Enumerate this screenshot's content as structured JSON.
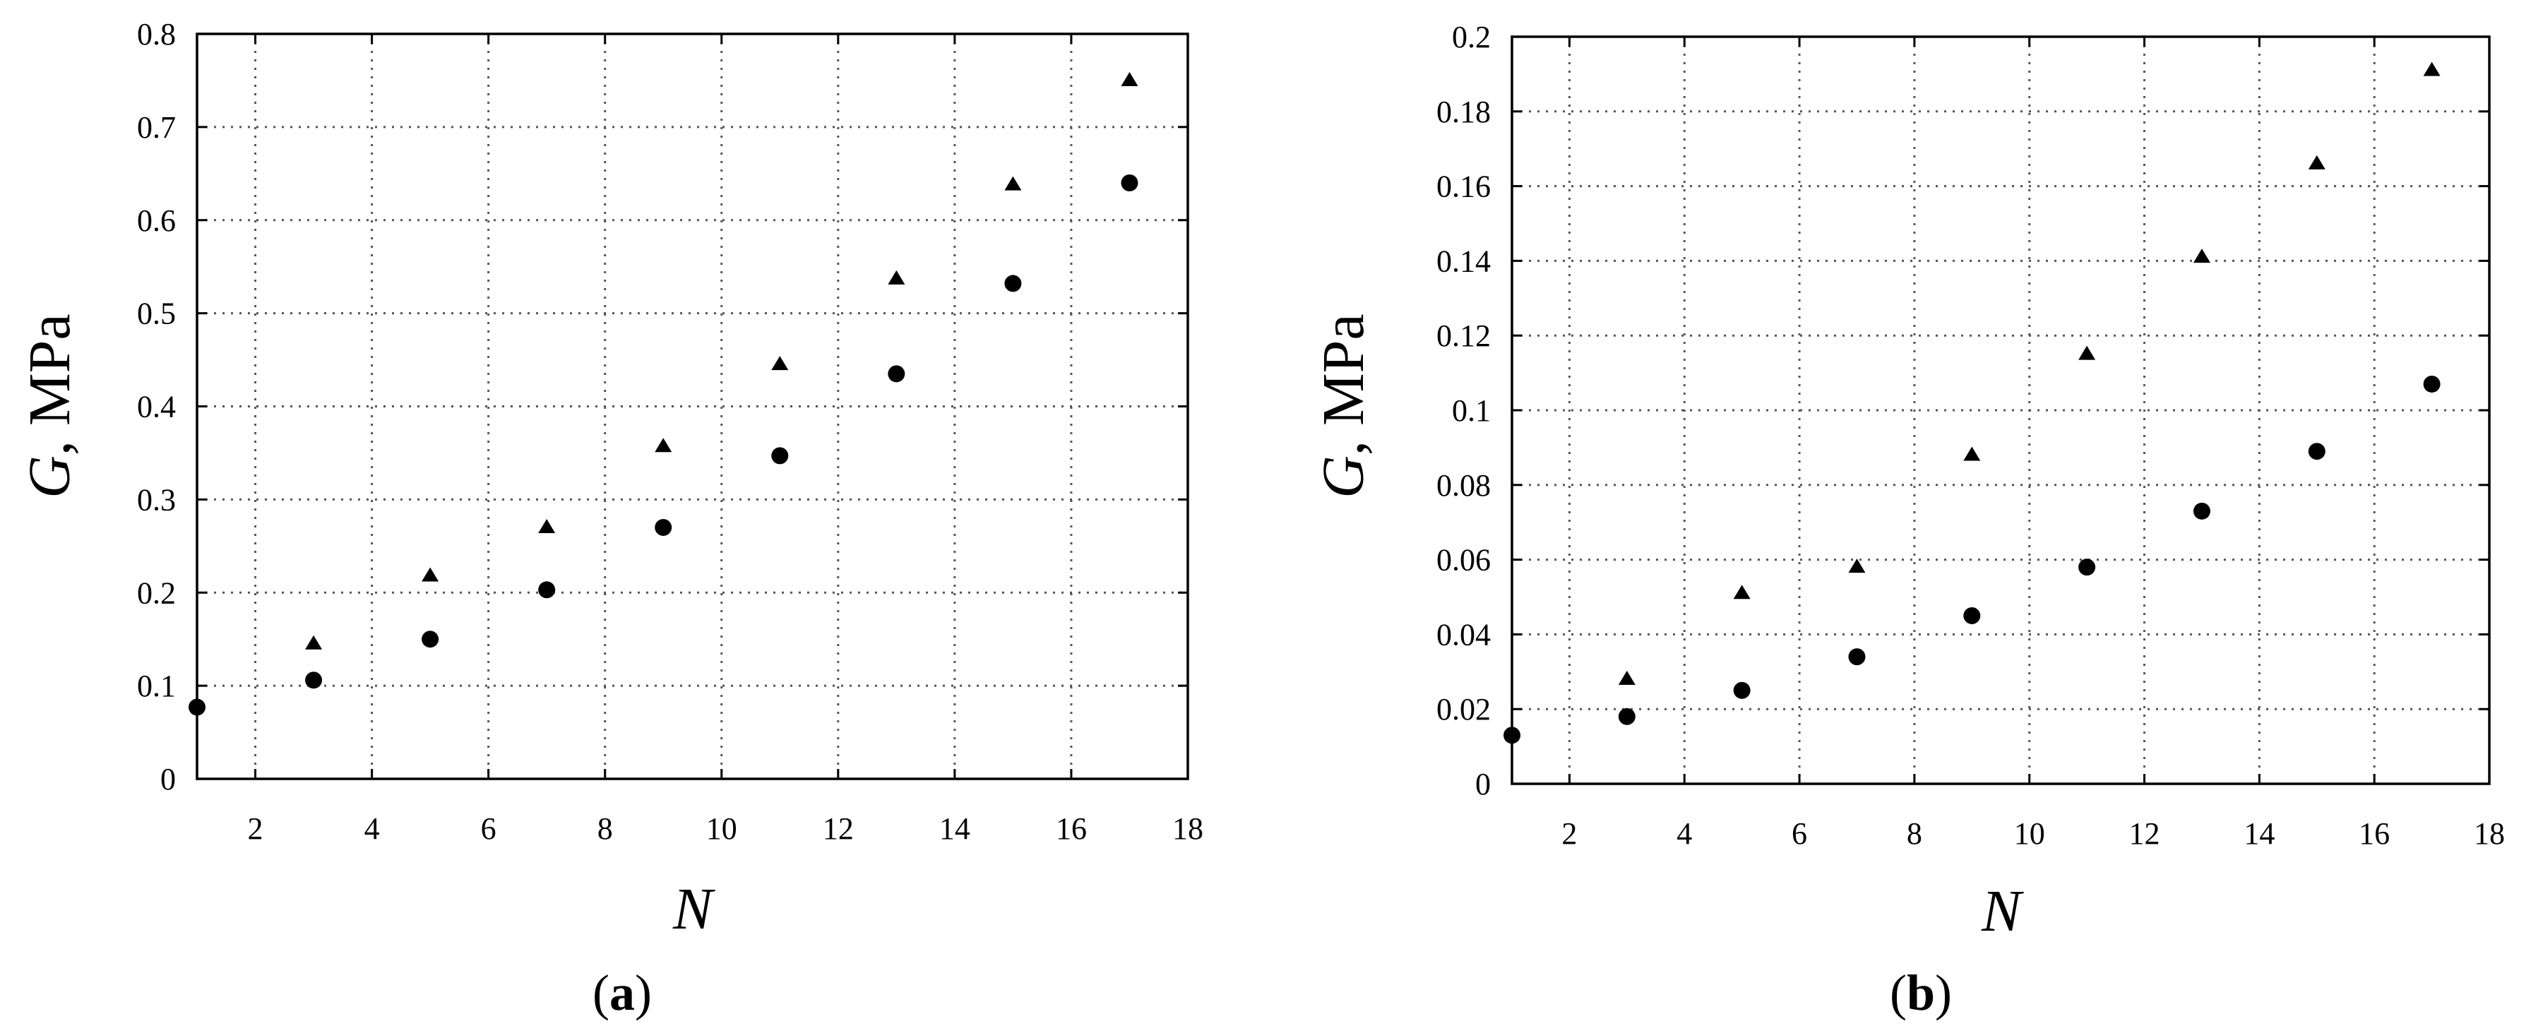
{
  "chart_data": [
    {
      "type": "scatter",
      "panel_label": "a",
      "xlabel": "N",
      "ylabel_symbol": "G",
      "ylabel_unit": ", MPa",
      "xlim": [
        1,
        18
      ],
      "ylim": [
        0,
        0.8
      ],
      "x_ticks": [
        2,
        4,
        6,
        8,
        10,
        12,
        14,
        16,
        18
      ],
      "y_ticks": [
        0,
        0.1,
        0.2,
        0.3,
        0.4,
        0.5,
        0.6,
        0.7,
        0.8
      ],
      "y_tick_labels": [
        "0",
        "0.1",
        "0.2",
        "0.3",
        "0.4",
        "0.5",
        "0.6",
        "0.7",
        "0.8"
      ],
      "grid": true,
      "series": [
        {
          "marker": "triangle",
          "x": [
            3,
            5,
            7,
            9,
            11,
            13,
            15,
            17
          ],
          "y": [
            0.145,
            0.218,
            0.27,
            0.357,
            0.445,
            0.537,
            0.638,
            0.75
          ]
        },
        {
          "marker": "circle",
          "x": [
            1,
            3,
            5,
            7,
            9,
            11,
            13,
            15,
            17
          ],
          "y": [
            0.077,
            0.106,
            0.15,
            0.203,
            0.27,
            0.347,
            0.435,
            0.532,
            0.64
          ]
        }
      ]
    },
    {
      "type": "scatter",
      "panel_label": "b",
      "xlabel": "N",
      "ylabel_symbol": "G",
      "ylabel_unit": ", MPa",
      "xlim": [
        1,
        18
      ],
      "ylim": [
        0,
        0.2
      ],
      "x_ticks": [
        2,
        4,
        6,
        8,
        10,
        12,
        14,
        16,
        18
      ],
      "y_ticks": [
        0,
        0.02,
        0.04,
        0.06,
        0.08,
        0.1,
        0.12,
        0.14,
        0.16,
        0.18,
        0.2
      ],
      "y_tick_labels": [
        "0",
        "0.02",
        "0.04",
        "0.06",
        "0.08",
        "0.1",
        "0.12",
        "0.14",
        "0.16",
        "0.18",
        "0.2"
      ],
      "grid": true,
      "series": [
        {
          "marker": "triangle",
          "x": [
            3,
            5,
            7,
            9,
            11,
            13,
            15,
            17
          ],
          "y": [
            0.028,
            0.051,
            0.058,
            0.088,
            0.115,
            0.141,
            0.166,
            0.191
          ]
        },
        {
          "marker": "circle",
          "x": [
            1,
            3,
            5,
            7,
            9,
            11,
            13,
            15,
            17
          ],
          "y": [
            0.013,
            0.018,
            0.025,
            0.034,
            0.045,
            0.058,
            0.073,
            0.089,
            0.107
          ]
        }
      ]
    }
  ]
}
